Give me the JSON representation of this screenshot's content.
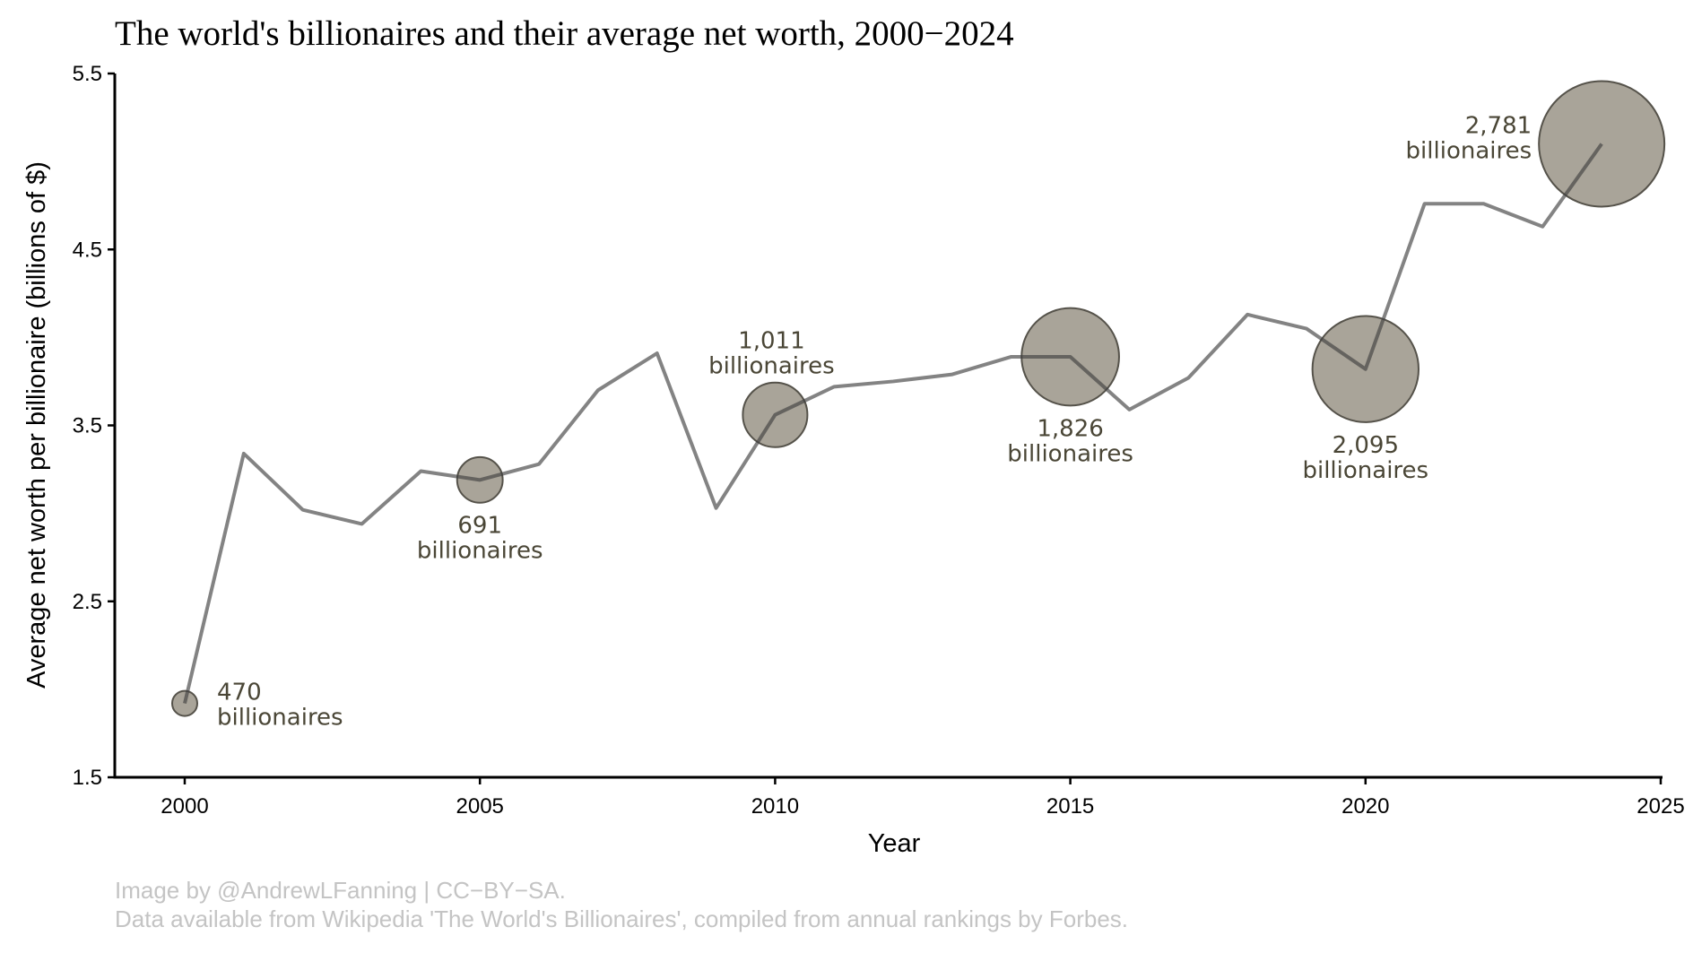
{
  "chart_data": {
    "type": "line",
    "title": "The world's billionaires and their average net worth, 2000−2024",
    "xlabel": "Year",
    "ylabel": "Average net worth per billionaire (billions of $)",
    "xlim": [
      2000,
      2025
    ],
    "ylim": [
      1.5,
      5.5
    ],
    "x_ticks": [
      "2000",
      "2005",
      "2010",
      "2015",
      "2020",
      "2025"
    ],
    "y_ticks": [
      "1.5",
      "2.5",
      "3.5",
      "4.5",
      "5.5"
    ],
    "grid": false,
    "line_color": "#808080",
    "bubble_color": "#a49f94",
    "series": [
      {
        "name": "Average net worth",
        "x": [
          2000,
          2001,
          2002,
          2003,
          2004,
          2005,
          2006,
          2007,
          2008,
          2009,
          2010,
          2011,
          2012,
          2013,
          2014,
          2015,
          2016,
          2017,
          2018,
          2019,
          2020,
          2021,
          2022,
          2023,
          2024
        ],
        "y": [
          1.92,
          3.34,
          3.02,
          2.94,
          3.24,
          3.19,
          3.28,
          3.7,
          3.91,
          3.03,
          3.56,
          3.72,
          3.75,
          3.79,
          3.89,
          3.89,
          3.59,
          3.77,
          4.13,
          4.05,
          3.82,
          4.76,
          4.76,
          4.63,
          5.1
        ]
      }
    ],
    "bubbles": [
      {
        "year": 2000,
        "count": 470,
        "label_number": "470",
        "label_word": "billionaires",
        "placement": "right"
      },
      {
        "year": 2005,
        "count": 691,
        "label_number": "691",
        "label_word": "billionaires",
        "placement": "below"
      },
      {
        "year": 2010,
        "count": 1011,
        "label_number": "1,011",
        "label_word": "billionaires",
        "placement": "above"
      },
      {
        "year": 2015,
        "count": 1826,
        "label_number": "1,826",
        "label_word": "billionaires",
        "placement": "below"
      },
      {
        "year": 2020,
        "count": 2095,
        "label_number": "2,095",
        "label_word": "billionaires",
        "placement": "below"
      },
      {
        "year": 2024,
        "count": 2781,
        "label_number": "2,781",
        "label_word": "billionaires",
        "placement": "left"
      }
    ]
  },
  "caption": {
    "line1": "Image by @AndrewLFanning | CC−BY−SA.",
    "line2": "Data available from Wikipedia 'The World's Billionaires', compiled from annual rankings by Forbes."
  }
}
